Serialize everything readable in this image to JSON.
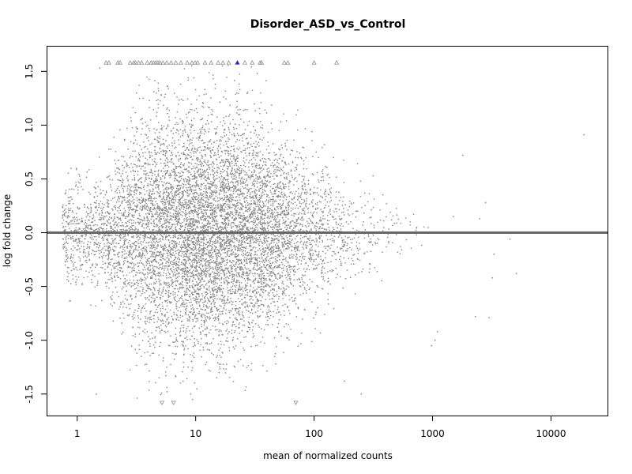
{
  "chart_data": {
    "type": "scatter",
    "title": "Disorder_ASD_vs_Control",
    "xlabel": "mean of normalized counts",
    "ylabel": "log fold change",
    "x_scale": "log10",
    "xlim": [
      0.56,
      30000
    ],
    "ylim": [
      -1.7,
      1.73
    ],
    "x_ticks": [
      1,
      10,
      100,
      1000,
      10000
    ],
    "x_tick_labels": [
      "1",
      "10",
      "100",
      "1000",
      "10000"
    ],
    "y_ticks": [
      -1.5,
      -1.0,
      -0.5,
      0.0,
      0.5,
      1.0,
      1.5
    ],
    "y_tick_labels": [
      "-1.5",
      "-1.0",
      "-0.5",
      "0.0",
      "0.5",
      "1.0",
      "1.5"
    ],
    "reference_line_y": 0,
    "grid": false,
    "legend": "none",
    "colors": {
      "points": "#8c8c8c",
      "significant": "#2b2bb5",
      "reference_line": "#666666",
      "axes": "#000000"
    },
    "clipped_points_shape": "triangle",
    "highlighted_points": [
      {
        "x": 22.5,
        "y": 1.58,
        "clipped": "top",
        "color": "#2b2bb5"
      }
    ],
    "notable_points": [
      {
        "x": 19000,
        "y": 0.91
      },
      {
        "x": 1800,
        "y": 0.72
      },
      {
        "x": 2800,
        "y": 0.28
      },
      {
        "x": 2500,
        "y": 0.13
      },
      {
        "x": 1500,
        "y": 0.15
      },
      {
        "x": 4500,
        "y": -0.06
      },
      {
        "x": 3300,
        "y": -0.2
      },
      {
        "x": 5100,
        "y": -0.38
      },
      {
        "x": 3200,
        "y": -0.42
      },
      {
        "x": 2300,
        "y": -0.78
      },
      {
        "x": 3000,
        "y": -0.79
      },
      {
        "x": 1100,
        "y": -0.92
      },
      {
        "x": 1050,
        "y": -1.0
      },
      {
        "x": 980,
        "y": -1.05
      },
      {
        "x": 250,
        "y": -1.5
      },
      {
        "x": 180,
        "y": -1.38
      },
      {
        "x": 1.45,
        "y": -1.5
      },
      {
        "x": 1.55,
        "y": 1.53
      }
    ],
    "clipped_top_x": [
      1.75,
      1.85,
      2.2,
      2.3,
      2.8,
      3.0,
      3.1,
      3.3,
      3.5,
      3.9,
      4.2,
      4.4,
      4.6,
      4.8,
      5.0,
      5.3,
      5.7,
      6.2,
      6.8,
      7.5,
      8.5,
      9.3,
      9.9,
      10.4,
      12.0,
      13.5,
      15.5,
      17.0,
      19.0,
      26.0,
      30.0,
      35.0,
      36.0,
      56.0,
      60.0,
      100.0,
      155.0
    ],
    "clipped_bottom_x": [
      5.2,
      6.5,
      70.0
    ],
    "cloud": {
      "approx_point_count": 9000,
      "center_log10_x": 1.1,
      "spread_log10_x": 0.55,
      "range_x": [
        0.75,
        1000
      ],
      "y_spread_at_center": 0.55
    }
  }
}
